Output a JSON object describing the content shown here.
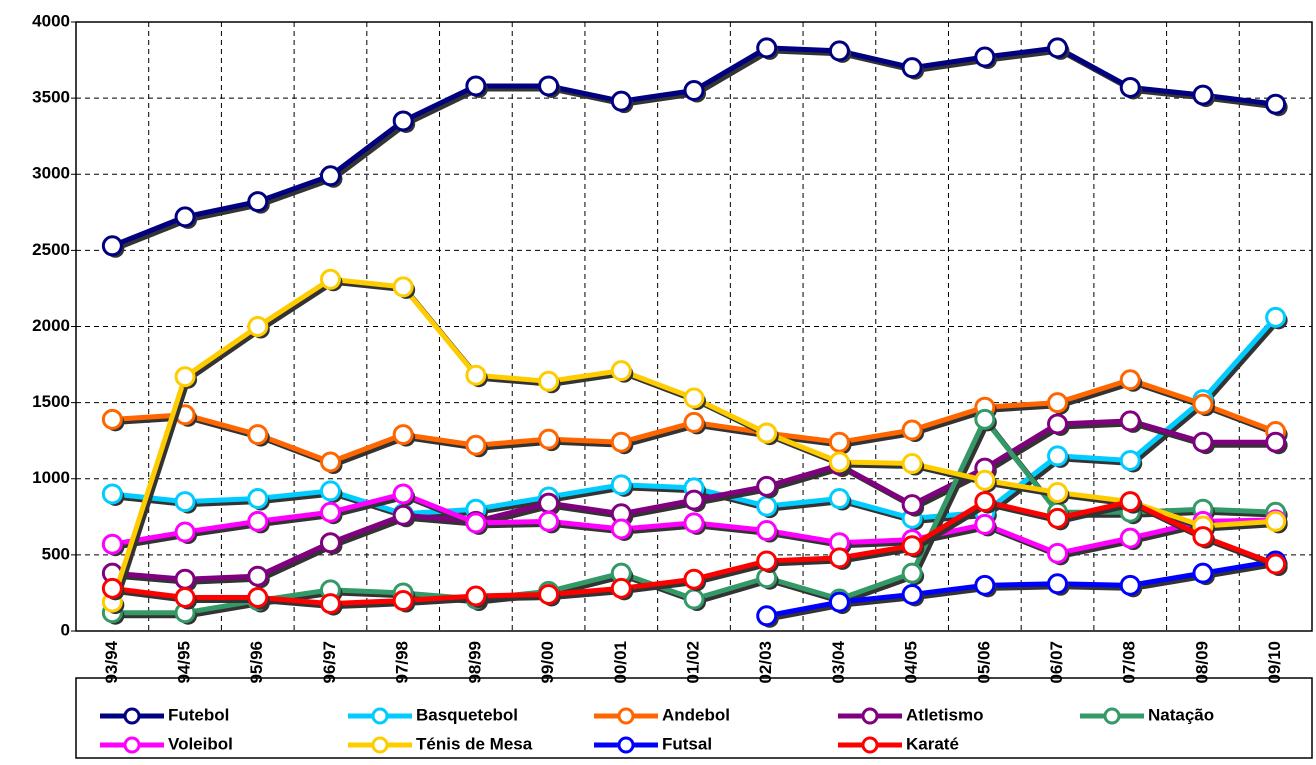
{
  "chart_data": {
    "type": "line",
    "categories": [
      "93/94",
      "94/95",
      "95/96",
      "96/97",
      "97/98",
      "98/99",
      "99/00",
      "00/01",
      "01/02",
      "02/03",
      "03/04",
      "04/05",
      "05/06",
      "06/07",
      "07/08",
      "08/09",
      "09/10"
    ],
    "ylim": [
      0,
      4000
    ],
    "yticks": [
      0,
      500,
      1000,
      1500,
      2000,
      2500,
      3000,
      3500,
      4000
    ],
    "grid": true,
    "series": [
      {
        "name": "Futebol",
        "color": "#000080",
        "values": [
          2530,
          2720,
          2820,
          2990,
          3350,
          3580,
          3580,
          3480,
          3550,
          3830,
          3810,
          3700,
          3770,
          3830,
          3570,
          3520,
          3460
        ]
      },
      {
        "name": "Basquetebol",
        "color": "#00ccff",
        "values": [
          900,
          850,
          870,
          920,
          770,
          800,
          880,
          960,
          940,
          820,
          870,
          740,
          780,
          1150,
          1120,
          1520,
          2060
        ]
      },
      {
        "name": "Andebol",
        "color": "#ff6600",
        "values": [
          1390,
          1420,
          1290,
          1110,
          1290,
          1220,
          1260,
          1240,
          1370,
          1300,
          1240,
          1320,
          1470,
          1500,
          1650,
          1490,
          1310
        ]
      },
      {
        "name": "Atletismo",
        "color": "#800080",
        "values": [
          380,
          340,
          360,
          580,
          760,
          720,
          840,
          770,
          860,
          950,
          1090,
          830,
          1070,
          1360,
          1380,
          1240,
          1240
        ]
      },
      {
        "name": "Natação",
        "color": "#339966",
        "values": [
          120,
          120,
          200,
          270,
          250,
          210,
          260,
          380,
          210,
          350,
          210,
          380,
          1390,
          780,
          780,
          800,
          780
        ]
      },
      {
        "name": "Voleibol",
        "color": "#ff00ff",
        "values": [
          570,
          650,
          720,
          780,
          900,
          710,
          720,
          670,
          710,
          660,
          580,
          600,
          700,
          510,
          610,
          720,
          730
        ]
      },
      {
        "name": "Ténis de Mesa",
        "color": "#ffcc00",
        "values": [
          190,
          1670,
          2000,
          2310,
          2260,
          1680,
          1640,
          1710,
          1530,
          1300,
          1110,
          1100,
          990,
          910,
          850,
          690,
          720
        ]
      },
      {
        "name": "Futsal",
        "color": "#0000ff",
        "values": [
          null,
          null,
          null,
          null,
          null,
          null,
          null,
          null,
          null,
          100,
          190,
          240,
          300,
          310,
          300,
          380,
          460
        ]
      },
      {
        "name": "Karaté",
        "color": "#ff0000",
        "values": [
          280,
          220,
          220,
          180,
          200,
          230,
          240,
          280,
          340,
          460,
          480,
          560,
          850,
          740,
          850,
          620,
          440
        ]
      }
    ]
  }
}
